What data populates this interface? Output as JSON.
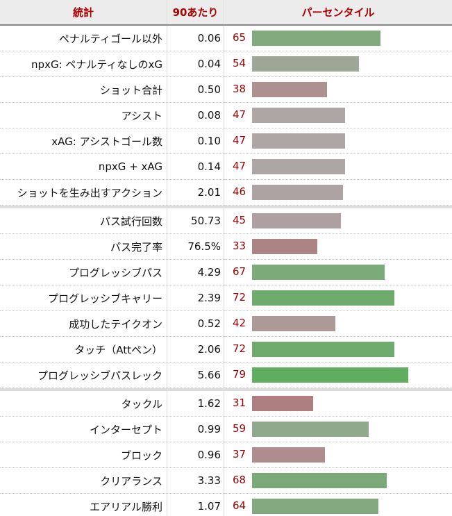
{
  "header": {
    "stat": "統計",
    "per90": "90あたり",
    "percentile": "パーセンタイル"
  },
  "bar_colors": {
    "low": "#ad7d7d",
    "mid": "#aea5a5",
    "high": "#5fad5f"
  },
  "groups": [
    [
      {
        "stat": "ペナルティゴール以外",
        "per90": "0.06",
        "percentile": 65
      },
      {
        "stat": "npxG: ペナルティなしのxG",
        "per90": "0.04",
        "percentile": 54
      },
      {
        "stat": "ショット合計",
        "per90": "0.50",
        "percentile": 38
      },
      {
        "stat": "アシスト",
        "per90": "0.08",
        "percentile": 47
      },
      {
        "stat": "xAG: アシストゴール数",
        "per90": "0.10",
        "percentile": 47
      },
      {
        "stat": "npxG + xAG",
        "per90": "0.14",
        "percentile": 47
      },
      {
        "stat": "ショットを生み出すアクション",
        "per90": "2.01",
        "percentile": 46
      }
    ],
    [
      {
        "stat": "パス試行回数",
        "per90": "50.73",
        "percentile": 45
      },
      {
        "stat": "パス完了率",
        "per90": "76.5%",
        "percentile": 33
      },
      {
        "stat": "プログレッシブパス",
        "per90": "4.29",
        "percentile": 67
      },
      {
        "stat": "プログレッシブキャリー",
        "per90": "2.39",
        "percentile": 72
      },
      {
        "stat": "成功したテイクオン",
        "per90": "0.52",
        "percentile": 42
      },
      {
        "stat": "タッチ（Attペン）",
        "per90": "2.06",
        "percentile": 72
      },
      {
        "stat": "プログレッシブパスレック",
        "per90": "5.66",
        "percentile": 79
      }
    ],
    [
      {
        "stat": "タックル",
        "per90": "1.62",
        "percentile": 31
      },
      {
        "stat": "インターセプト",
        "per90": "0.99",
        "percentile": 59
      },
      {
        "stat": "ブロック",
        "per90": "0.96",
        "percentile": 37
      },
      {
        "stat": "クリアランス",
        "per90": "3.33",
        "percentile": 68
      },
      {
        "stat": "エアリアル勝利",
        "per90": "1.07",
        "percentile": 64
      }
    ]
  ]
}
